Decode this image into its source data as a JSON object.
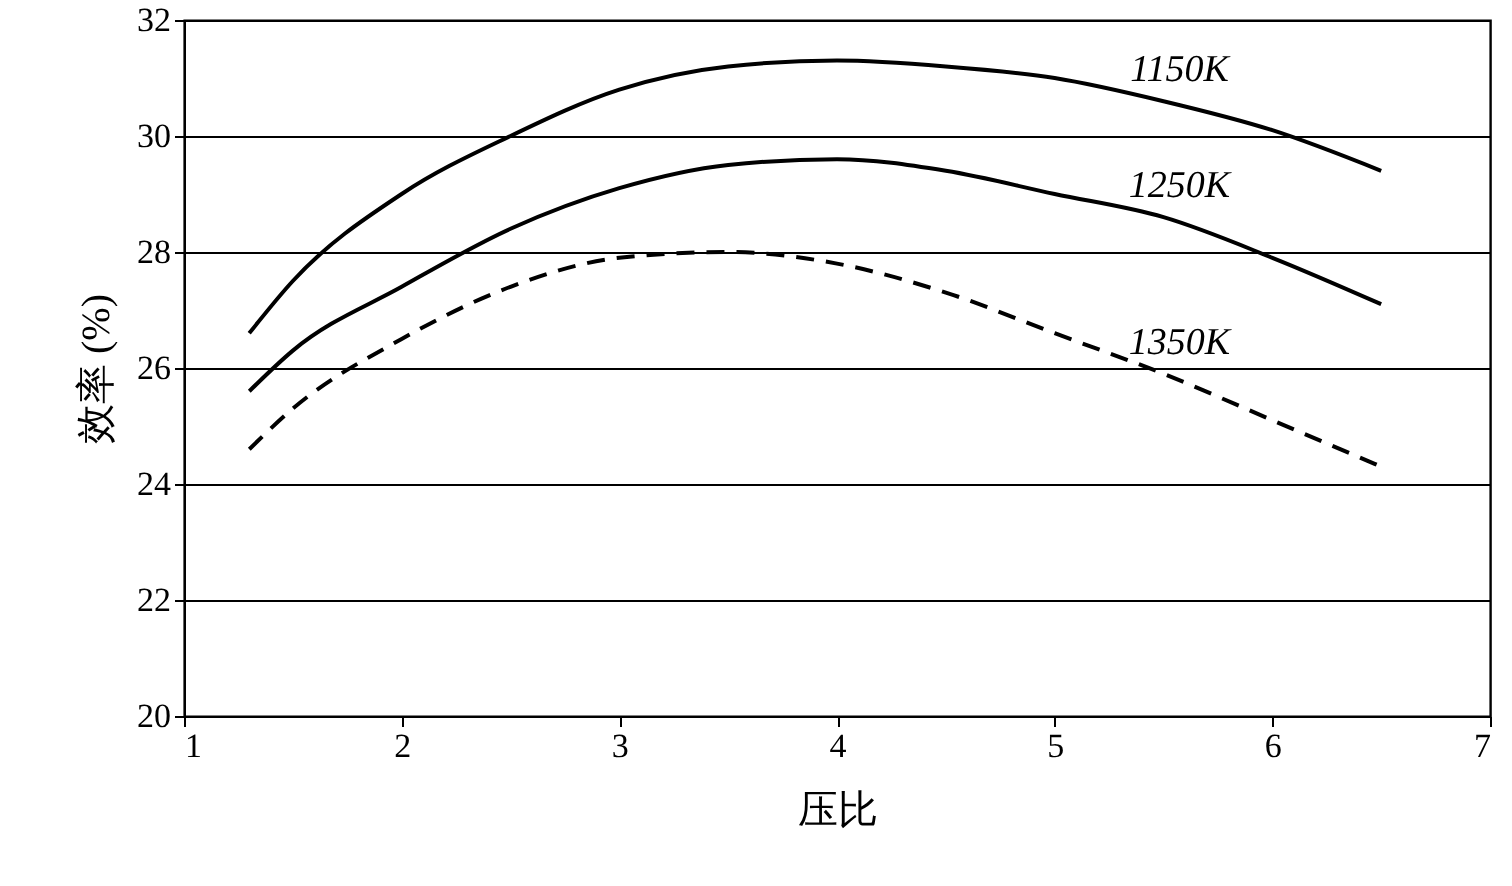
{
  "chart_data": {
    "type": "line",
    "xlabel": "压比",
    "ylabel": "效率 (%)",
    "x": [
      1.3,
      1.5,
      2,
      2.5,
      3,
      3.5,
      4,
      4.5,
      5,
      5.5,
      6,
      6.5
    ],
    "series": [
      {
        "name": "1150K",
        "color": "#000000",
        "line_style": "solid",
        "values": [
          26.6,
          27.5,
          29.0,
          30.0,
          30.8,
          31.2,
          31.3,
          31.2,
          31.0,
          30.6,
          30.1,
          29.4
        ]
      },
      {
        "name": "1250K",
        "color": "#000000",
        "line_style": "solid",
        "values": [
          25.6,
          26.3,
          27.4,
          28.4,
          29.1,
          29.5,
          29.6,
          29.4,
          29.0,
          28.6,
          27.9,
          27.1
        ]
      },
      {
        "name": "1350K",
        "color": "#000000",
        "line_style": "dashed",
        "values": [
          24.6,
          25.3,
          26.5,
          27.4,
          27.9,
          28.0,
          27.8,
          27.3,
          26.6,
          25.9,
          25.1,
          24.3
        ]
      }
    ],
    "xlim": [
      1,
      7
    ],
    "xticks": [
      1,
      2,
      3,
      4,
      5,
      6,
      7
    ],
    "ylim": [
      20,
      32
    ],
    "yticks": [
      20,
      22,
      24,
      26,
      28,
      30,
      32
    ],
    "grid": "y",
    "legend": false,
    "marker": "none"
  }
}
